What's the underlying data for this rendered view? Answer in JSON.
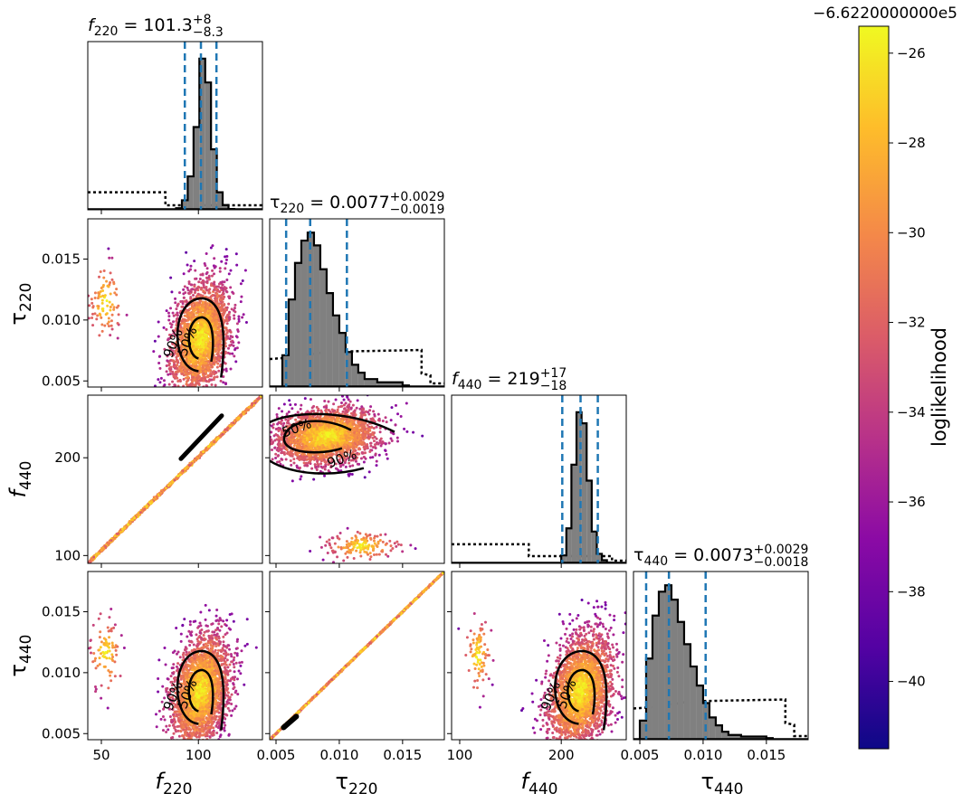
{
  "chart_data": {
    "type": "scatter",
    "kind": "corner-plot",
    "parameters": [
      {
        "key": "f220",
        "label_main": "f",
        "label_sub": "220",
        "range": [
          43,
          133
        ],
        "ticks": [
          50,
          100
        ],
        "title_value": "101.3",
        "err_plus": "+8",
        "err_minus": "−8.3",
        "title_eq": " = ",
        "median": 101.3,
        "lo": 93.0,
        "hi": 109.3
      },
      {
        "key": "tau220",
        "label_main": "τ",
        "label_sub": "220",
        "range": [
          0.0045,
          0.0183
        ],
        "ticks": [
          0.005,
          0.01,
          0.015
        ],
        "tick_labels": [
          "0.005",
          "0.010",
          "0.015"
        ],
        "title_value": "0.0077",
        "err_plus": "+0.0029",
        "err_minus": "−0.0019",
        "title_eq": " = ",
        "median": 0.0077,
        "lo": 0.0058,
        "hi": 0.0106
      },
      {
        "key": "f440",
        "label_main": "f",
        "label_sub": "440",
        "range": [
          92,
          264
        ],
        "ticks": [
          100,
          200
        ],
        "title_value": "219",
        "err_plus": "+17",
        "err_minus": "−18",
        "title_eq": " = ",
        "median": 219,
        "lo": 201,
        "hi": 236
      },
      {
        "key": "tau440",
        "label_main": "τ",
        "label_sub": "440",
        "range": [
          0.0045,
          0.0183
        ],
        "ticks": [
          0.005,
          0.01,
          0.015
        ],
        "tick_labels": [
          "0.005",
          "0.010",
          "0.015"
        ],
        "title_value": "0.0073",
        "err_plus": "+0.0029",
        "err_minus": "−0.0018",
        "title_eq": " = ",
        "median": 0.0073,
        "lo": 0.0055,
        "hi": 0.0102
      }
    ],
    "contour_levels": [
      "50%",
      "90%"
    ],
    "colorbar": {
      "label": "loglikelihood",
      "offset_text": "−6.6220000000e5",
      "range": [
        -41.5,
        -25.4
      ],
      "ticks": [
        -26,
        -28,
        -30,
        -32,
        -34,
        -36,
        -38,
        -40
      ],
      "tick_labels": [
        "−26",
        "−28",
        "−30",
        "−32",
        "−34",
        "−36",
        "−38",
        "−40"
      ],
      "colormap": "plasma"
    },
    "colors": {
      "hist_fill": "#808080",
      "hist_edge": "#000000",
      "quantile_lines": "#1f77b4",
      "prior_line": "#000000",
      "contour": "#000000"
    },
    "diagonal_histograms": [
      {
        "param": "f220",
        "bins": [
          88.5,
          91.5,
          94.5,
          97.5,
          100.5,
          103.5,
          106.5,
          109.5,
          112.5,
          115.5
        ],
        "counts": [
          0.01,
          0.06,
          0.21,
          0.52,
          0.95,
          0.8,
          0.38,
          0.11,
          0.03,
          0.005
        ],
        "prior_level": 0.11,
        "prior_drop_at": 83
      },
      {
        "param": "tau220",
        "bins": [
          0.0055,
          0.006,
          0.0065,
          0.007,
          0.0075,
          0.008,
          0.0085,
          0.009,
          0.0095,
          0.01,
          0.0105,
          0.011,
          0.0115,
          0.012,
          0.013,
          0.015
        ],
        "counts": [
          0.2,
          0.55,
          0.78,
          0.92,
          0.97,
          0.89,
          0.74,
          0.59,
          0.45,
          0.34,
          0.22,
          0.14,
          0.09,
          0.05,
          0.03,
          0.01
        ],
        "prior_level": 0.21
      },
      {
        "param": "f440",
        "bins": [
          200,
          205,
          210,
          215,
          220,
          225,
          230,
          235,
          240,
          245
        ],
        "counts": [
          0.05,
          0.22,
          0.62,
          0.95,
          0.88,
          0.52,
          0.2,
          0.06,
          0.02,
          0.005
        ],
        "prior_level": 0.12
      },
      {
        "param": "tau440",
        "bins": [
          0.005,
          0.0055,
          0.006,
          0.0065,
          0.007,
          0.0075,
          0.008,
          0.0085,
          0.009,
          0.0095,
          0.01,
          0.0105,
          0.011,
          0.0115,
          0.012,
          0.013,
          0.015
        ],
        "counts": [
          0.12,
          0.51,
          0.78,
          0.93,
          0.97,
          0.88,
          0.74,
          0.6,
          0.46,
          0.34,
          0.23,
          0.14,
          0.09,
          0.05,
          0.03,
          0.02,
          0.01
        ],
        "prior_level": 0.23
      }
    ]
  }
}
